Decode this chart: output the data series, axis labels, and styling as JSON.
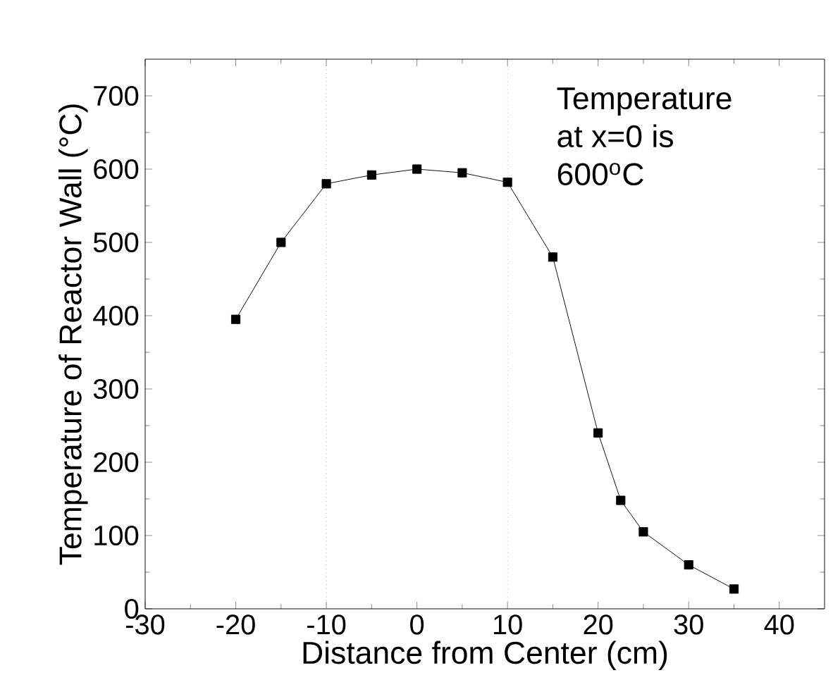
{
  "chart_data": {
    "type": "line",
    "xlabel": "Distance from Center (cm)",
    "ylabel": "Temperature of Reactor Wall (°C)",
    "x": [
      -20,
      -15,
      -10,
      -5,
      0,
      5,
      10,
      15,
      20,
      22.5,
      25,
      30,
      35
    ],
    "series": [
      {
        "color": "#000000",
        "values": [
          395,
          500,
          580,
          592,
          600,
          595,
          582,
          480,
          240,
          148,
          105,
          60,
          27
        ]
      }
    ],
    "xlim": [
      -30,
      45
    ],
    "ylim": [
      0,
      750
    ],
    "xticks": [
      -30,
      -20,
      -10,
      0,
      10,
      20,
      30,
      40
    ],
    "yticks": [
      0,
      100,
      200,
      300,
      400,
      500,
      600,
      700
    ],
    "ref_lines": [
      {
        "axis": "x",
        "value": -10,
        "color": "#999999",
        "line_style": "dotted"
      },
      {
        "axis": "x",
        "value": 10,
        "color": "#999999",
        "line_style": "dotted"
      }
    ],
    "annotations": [
      "Temperature\nat x=0 is\n600$^{o}$C"
    ],
    "marker": "square",
    "line_style": "solid",
    "grid": false
  }
}
